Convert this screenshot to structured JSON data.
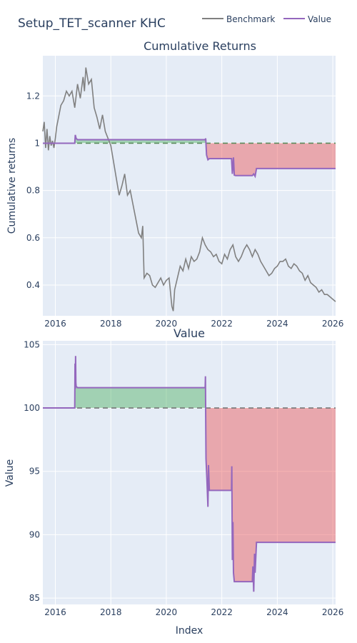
{
  "figure": {
    "title": "Setup_TET_scanner KHC",
    "xlabel": "Index",
    "background": "#ffffff",
    "plot_background": "#e5ecf6",
    "grid_color": "#ffffff"
  },
  "legend": {
    "placement": "top-right",
    "items": [
      {
        "label": "Benchmark",
        "color": "#808080"
      },
      {
        "label": "Value",
        "color": "#9467bd"
      }
    ]
  },
  "colors": {
    "benchmark": "#808080",
    "value": "#9467bd",
    "baseline": "#777777",
    "baseline_top": "#5a8a5a",
    "gain_fill": "rgba(60,170,80,0.40)",
    "loss_fill": "rgba(235,85,85,0.45)"
  },
  "chart_data": [
    {
      "type": "line",
      "title": "Cumulative Returns",
      "ylabel": "Cumulative returns",
      "xlim": [
        2015.55,
        2026.1
      ],
      "ylim": [
        0.27,
        1.37
      ],
      "x_ticks": [
        2016,
        2018,
        2020,
        2022,
        2024,
        2026
      ],
      "x_tick_labels": [
        "2016",
        "2018",
        "2020",
        "2022",
        "2024",
        "2026"
      ],
      "y_ticks": [
        0.4,
        0.6,
        0.8,
        1.0,
        1.2
      ],
      "y_tick_labels": [
        "0.4",
        "0.6",
        "0.8",
        "1",
        "1.2"
      ],
      "baseline": 1.0,
      "series": [
        {
          "name": "Benchmark",
          "x": [
            2015.55,
            2015.6,
            2015.65,
            2015.7,
            2015.75,
            2015.8,
            2015.85,
            2015.9,
            2015.95,
            2016.0,
            2016.05,
            2016.1,
            2016.2,
            2016.3,
            2016.4,
            2016.5,
            2016.6,
            2016.7,
            2016.8,
            2016.9,
            2017.0,
            2017.05,
            2017.1,
            2017.2,
            2017.3,
            2017.4,
            2017.5,
            2017.6,
            2017.7,
            2017.8,
            2017.9,
            2018.0,
            2018.1,
            2018.2,
            2018.3,
            2018.4,
            2018.5,
            2018.6,
            2018.7,
            2018.8,
            2018.9,
            2019.0,
            2019.1,
            2019.15,
            2019.2,
            2019.3,
            2019.4,
            2019.5,
            2019.6,
            2019.7,
            2019.8,
            2019.9,
            2020.0,
            2020.1,
            2020.2,
            2020.25,
            2020.3,
            2020.4,
            2020.5,
            2020.6,
            2020.7,
            2020.8,
            2020.9,
            2021.0,
            2021.1,
            2021.2,
            2021.3,
            2021.4,
            2021.5,
            2021.6,
            2021.7,
            2021.8,
            2021.9,
            2022.0,
            2022.1,
            2022.2,
            2022.3,
            2022.4,
            2022.5,
            2022.6,
            2022.7,
            2022.8,
            2022.9,
            2023.0,
            2023.1,
            2023.2,
            2023.3,
            2023.4,
            2023.5,
            2023.6,
            2023.7,
            2023.8,
            2023.9,
            2024.0,
            2024.1,
            2024.2,
            2024.3,
            2024.4,
            2024.5,
            2024.6,
            2024.7,
            2024.8,
            2024.9,
            2025.0,
            2025.1,
            2025.2,
            2025.3,
            2025.4,
            2025.5,
            2025.6,
            2025.7,
            2025.8,
            2025.9,
            2026.0,
            2026.1
          ],
          "values": [
            1.05,
            1.09,
            0.98,
            1.06,
            0.97,
            1.03,
            0.99,
            1.01,
            0.98,
            1.02,
            1.07,
            1.1,
            1.16,
            1.18,
            1.22,
            1.2,
            1.22,
            1.15,
            1.25,
            1.19,
            1.28,
            1.22,
            1.32,
            1.25,
            1.27,
            1.15,
            1.11,
            1.06,
            1.12,
            1.05,
            1.02,
            0.99,
            0.92,
            0.85,
            0.78,
            0.82,
            0.87,
            0.78,
            0.8,
            0.74,
            0.68,
            0.62,
            0.6,
            0.65,
            0.43,
            0.45,
            0.44,
            0.4,
            0.39,
            0.41,
            0.43,
            0.4,
            0.42,
            0.43,
            0.31,
            0.29,
            0.38,
            0.43,
            0.48,
            0.46,
            0.51,
            0.47,
            0.52,
            0.5,
            0.51,
            0.54,
            0.6,
            0.57,
            0.55,
            0.54,
            0.52,
            0.53,
            0.5,
            0.49,
            0.53,
            0.51,
            0.55,
            0.57,
            0.52,
            0.5,
            0.52,
            0.55,
            0.57,
            0.55,
            0.52,
            0.55,
            0.53,
            0.5,
            0.48,
            0.46,
            0.44,
            0.45,
            0.47,
            0.48,
            0.5,
            0.5,
            0.51,
            0.48,
            0.47,
            0.49,
            0.48,
            0.46,
            0.45,
            0.42,
            0.44,
            0.41,
            0.4,
            0.39,
            0.37,
            0.38,
            0.36,
            0.36,
            0.35,
            0.34,
            0.33
          ]
        },
        {
          "name": "Value",
          "x": [
            2015.55,
            2016.7,
            2016.72,
            2016.75,
            2016.8,
            2021.4,
            2021.42,
            2021.45,
            2021.5,
            2021.55,
            2021.6,
            2022.35,
            2022.38,
            2022.42,
            2022.45,
            2022.5,
            2023.1,
            2023.15,
            2023.2,
            2023.25,
            2026.1
          ],
          "values": [
            1.0,
            1.0,
            1.035,
            1.02,
            1.015,
            1.015,
            1.02,
            0.95,
            0.93,
            0.935,
            0.935,
            0.935,
            0.87,
            0.94,
            0.865,
            0.863,
            0.863,
            0.87,
            0.86,
            0.893,
            0.893
          ]
        }
      ]
    },
    {
      "type": "area",
      "title": "Value",
      "ylabel": "Value",
      "xlim": [
        2015.55,
        2026.1
      ],
      "ylim": [
        84.5,
        105.3
      ],
      "x_ticks": [
        2016,
        2018,
        2020,
        2022,
        2024,
        2026
      ],
      "x_tick_labels": [
        "2016",
        "2018",
        "2020",
        "2022",
        "2024",
        "2026"
      ],
      "y_ticks": [
        85,
        90,
        95,
        100,
        105
      ],
      "y_tick_labels": [
        "85",
        "90",
        "95",
        "100",
        "105"
      ],
      "baseline": 100,
      "series": [
        {
          "name": "Value",
          "x": [
            2015.55,
            2016.7,
            2016.71,
            2016.72,
            2016.73,
            2016.74,
            2016.75,
            2016.8,
            2021.4,
            2021.41,
            2021.43,
            2021.46,
            2021.5,
            2021.52,
            2021.55,
            2021.6,
            2022.35,
            2022.36,
            2022.38,
            2022.4,
            2022.42,
            2022.45,
            2022.5,
            2023.1,
            2023.12,
            2023.15,
            2023.18,
            2023.2,
            2023.25,
            2026.1
          ],
          "values": [
            100,
            100,
            103.5,
            101.5,
            104.1,
            102.0,
            101.7,
            101.6,
            101.6,
            102.5,
            96.0,
            94.5,
            92.2,
            95.5,
            93.5,
            93.5,
            93.5,
            95.4,
            88.0,
            91.0,
            87.0,
            86.3,
            86.3,
            86.3,
            87.5,
            85.5,
            88.5,
            87.0,
            89.4,
            89.4
          ]
        }
      ]
    }
  ]
}
